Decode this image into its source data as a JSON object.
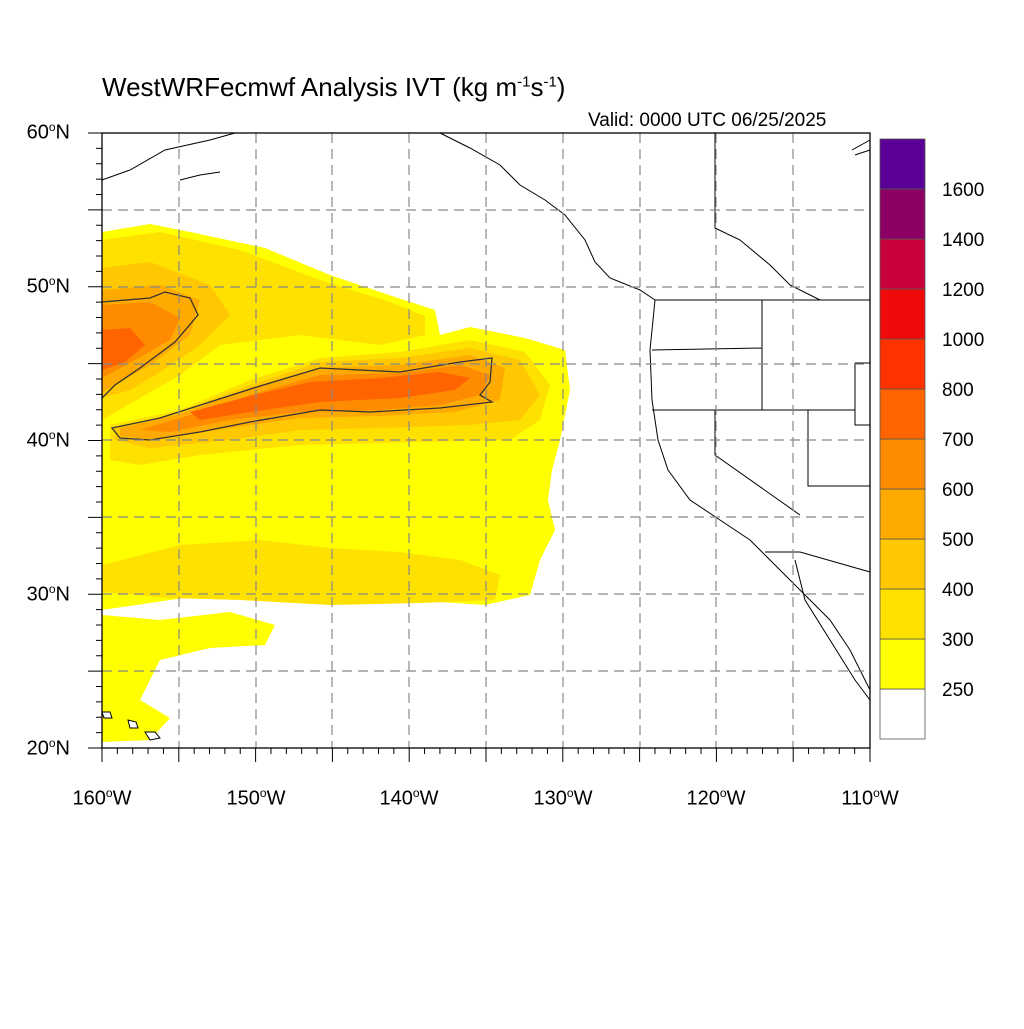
{
  "map": {
    "title_main": "WestWRFecmwf Analysis IVT (kg m",
    "title_exp1": "-1",
    "title_mid": "s",
    "title_exp2": "-1",
    "title_end": ")",
    "valid": "Valid: 0000 UTC 06/25/2025",
    "lat_labels": [
      {
        "text": "60",
        "hemi": "N"
      },
      {
        "text": "50",
        "hemi": "N"
      },
      {
        "text": "40",
        "hemi": "N"
      },
      {
        "text": "30",
        "hemi": "N"
      },
      {
        "text": "20",
        "hemi": "N"
      }
    ],
    "lon_labels": [
      {
        "text": "160",
        "hemi": "W"
      },
      {
        "text": "150",
        "hemi": "W"
      },
      {
        "text": "140",
        "hemi": "W"
      },
      {
        "text": "130",
        "hemi": "W"
      },
      {
        "text": "120",
        "hemi": "W"
      },
      {
        "text": "110",
        "hemi": "W"
      }
    ],
    "lat_range": [
      20,
      60
    ],
    "lon_range": [
      -160,
      -110
    ]
  },
  "colorbar": {
    "colors": [
      "#ffffff",
      "#ffff00",
      "#ffe100",
      "#ffc800",
      "#ffaa00",
      "#ff8c00",
      "#ff6400",
      "#ff3200",
      "#f00a0a",
      "#c8003c",
      "#8c0064",
      "#5a0096"
    ],
    "labels": [
      "250",
      "300",
      "400",
      "500",
      "600",
      "700",
      "800",
      "1000",
      "1200",
      "1400",
      "1600"
    ]
  },
  "field": {
    "colors": {
      "c250": "#ffff00",
      "c300": "#ffe100",
      "c400": "#ffc800",
      "c500": "#ffaa00",
      "c600": "#ff8c00",
      "c700": "#ff6400"
    }
  }
}
